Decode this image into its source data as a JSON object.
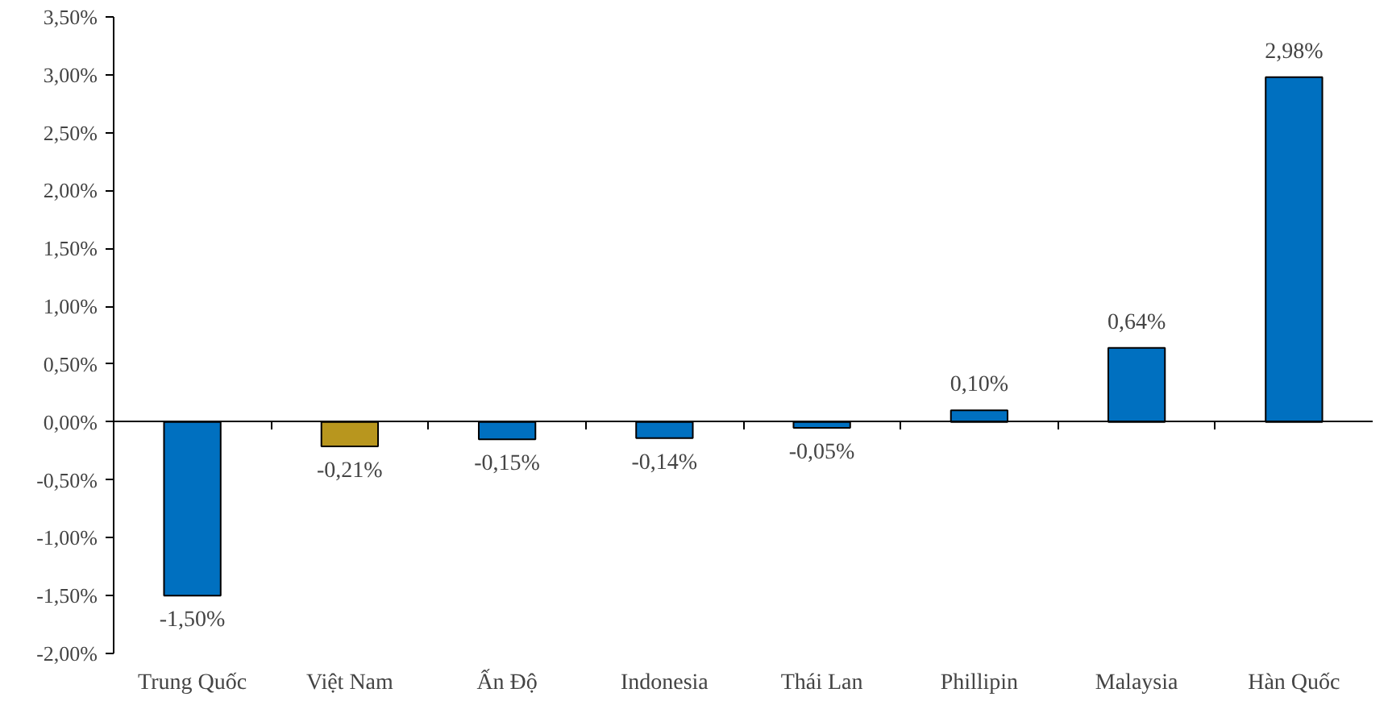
{
  "chart_data": {
    "type": "bar",
    "categories": [
      "Trung Quốc",
      "Việt Nam",
      "Ấn Độ",
      "Indonesia",
      "Thái Lan",
      "Phillipin",
      "Malaysia",
      "Hàn Quốc"
    ],
    "values": [
      -1.5,
      -0.21,
      -0.15,
      -0.14,
      -0.05,
      0.1,
      0.64,
      2.98
    ],
    "colors": [
      "#0070c0",
      "#b8961e",
      "#0070c0",
      "#0070c0",
      "#0070c0",
      "#0070c0",
      "#0070c0",
      "#0070c0"
    ],
    "value_labels": [
      "-1,50%",
      "-0,21%",
      "-0,15%",
      "-0,14%",
      "-0,05%",
      "0,10%",
      "0,64%",
      "2,98%"
    ],
    "ylim": [
      -2.0,
      3.5
    ],
    "yticks": [
      {
        "value": -2.0,
        "label": "-2,00%"
      },
      {
        "value": -1.5,
        "label": "-1,50%"
      },
      {
        "value": -1.0,
        "label": "-1,00%"
      },
      {
        "value": -0.5,
        "label": "-0,50%"
      },
      {
        "value": 0,
        "label": "0,00%"
      },
      {
        "value": 0.5,
        "label": "0,50%"
      },
      {
        "value": 1.0,
        "label": "1,00%"
      },
      {
        "value": 1.5,
        "label": "1,50%"
      },
      {
        "value": 2.0,
        "label": "2,00%"
      },
      {
        "value": 2.5,
        "label": "2,50%"
      },
      {
        "value": 3.0,
        "label": "3,00%"
      },
      {
        "value": 3.5,
        "label": "3,50%"
      }
    ]
  }
}
